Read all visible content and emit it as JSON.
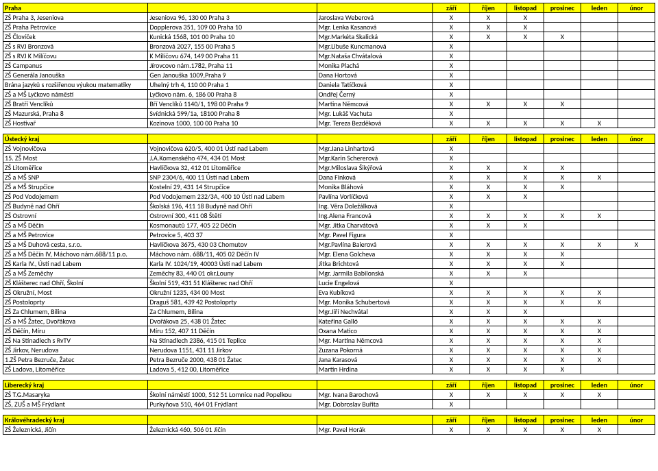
{
  "months": [
    "září",
    "říjen",
    "listopad",
    "prosinec",
    "leden",
    "únor"
  ],
  "sections": [
    {
      "title": "Praha",
      "rows": [
        [
          "ZŠ Praha 3, Jeseniova",
          "Jeseniova 96, 130 00 Praha 3",
          "Jaroslava Weberová",
          "X",
          "X",
          "X",
          "",
          "",
          ""
        ],
        [
          "ZŠ Praha Petrovice",
          "Dopplerova 351, 109 00 Praha 10",
          "Mgr. Lenka Kasanová",
          "X",
          "X",
          "X",
          "",
          "",
          ""
        ],
        [
          "ZŠ Človíček",
          "Kunická 1568, 101 00 Praha 10",
          "Mgr.Markéta Skalická",
          "X",
          "X",
          "X",
          "X",
          "",
          ""
        ],
        [
          "ZŠ s RVJ Bronzová",
          "Bronzová 2027, 155 00 Praha 5",
          "Mgr.Libuše Kuncmanová",
          "X",
          "",
          "",
          "",
          "",
          ""
        ],
        [
          "ZŠ s RVJ K Milíčovu",
          "K Milíčovu 674, 149 00 Praha 11",
          "Mgr.Nataša Chvátalová",
          "X",
          "",
          "",
          "",
          "",
          ""
        ],
        [
          "ZŠ Campanus",
          "Jírovcovo nám.1782, Praha 11",
          "Monika Plachá",
          "X",
          "",
          "",
          "",
          "",
          ""
        ],
        [
          "ZŠ Generála Janouška",
          "Gen Janouška 1009,Praha 9",
          "Dana Hortová",
          "X",
          "",
          "",
          "",
          "",
          ""
        ],
        [
          "Brána jazyků s rozšířenou výukou matematiky",
          "Uhelný trh 4, 110 00 Praha 1",
          "Daniela Tatíčková",
          "X",
          "",
          "",
          "",
          "",
          ""
        ],
        [
          "ZŠ a MŠ Lyčkovo náměstí",
          "Lyčkovo nám. 6, 186 00 Praha 8",
          "Ondřej Černý",
          "X",
          "",
          "",
          "",
          "",
          ""
        ],
        [
          "ZŠ Bratří Venclíků",
          "Bří Venclíků 1140/1, 198 00 Praha 9",
          "Martina Němcová",
          "X",
          "X",
          "X",
          "X",
          "",
          ""
        ],
        [
          "ZŠ Mazurská, Praha 8",
          "Svídnická 599/1a, 18100 Praha 8",
          "Mgr. Lukáš Vachuta",
          "X",
          "",
          "",
          "",
          "",
          ""
        ],
        [
          "ZŠ Hostivař",
          "Kozinova 1000, 100 00 Praha 10",
          "Mgr. Tereza Bezděková",
          "X",
          "X",
          "X",
          "X",
          "X",
          ""
        ]
      ]
    },
    {
      "title": "Ústecký kraj",
      "rows": [
        [
          "ZŠ Vojnovičova",
          "Vojnovičova 620/5, 400 01 Ústí nad Labem",
          "Mgr.Jana Linhartová",
          "X",
          "",
          "",
          "",
          "",
          ""
        ],
        [
          "15. ZŠ Most",
          "J.A.Komenského 474, 434 01 Most",
          "Mgr.Karin Schererová",
          "X",
          "",
          "",
          "",
          "",
          ""
        ],
        [
          "ZŠ Litoměřice",
          "Havlíčkova 32, 412 01 Litoměřice",
          "Mgr.Miloslava Šikýřová",
          "X",
          "X",
          "X",
          "X",
          "",
          ""
        ],
        [
          "ZŠ a MŠ SNP",
          "SNP 2304/6, 400 11 Ústí nad Labem",
          "Dana Finková",
          "X",
          "X",
          "X",
          "X",
          "X",
          ""
        ],
        [
          "ZŠ a MŠ Strupčice",
          "Kostelní 29, 431 14 Strupčice",
          "Monika Bláhová",
          "X",
          "X",
          "X",
          "X",
          "",
          ""
        ],
        [
          "ZŠ Pod Vodojemem",
          "Pod Vodojemem 232/3A, 400 10 Ústí nad Labem",
          "Pavlína Vorlíčková",
          "X",
          "X",
          "X",
          "",
          "",
          ""
        ],
        [
          "ZŠ Budyně nad Ohří",
          "Školská 196, 411 18 Budyně nad Ohří",
          "Ing. Věra Doležálková",
          "X",
          "",
          "",
          "",
          "",
          ""
        ],
        [
          "ZŠ Ostrovní",
          "Ostrovní 300, 411 08 Štětí",
          "Ing.Alena Francová",
          "X",
          "X",
          "X",
          "X",
          "X",
          ""
        ],
        [
          "ZŠ a MŠ Děčín",
          "Kosmonautů 177, 405 22 Děčín",
          "Mgr. Jitka Charvátová",
          "X",
          "X",
          "X",
          "",
          "",
          ""
        ],
        [
          "ZŠ a MŠ Petrovice",
          "Petrovice 5, 403 37",
          "Mgr. Pavel Figura",
          "X",
          "",
          "",
          "",
          "",
          ""
        ],
        [
          "ZŠ a MŠ Duhová cesta, s.r.o.",
          "Havlíčkova 3675, 430 03 Chomutov",
          "Mgr.Pavlína Baierová",
          "X",
          "X",
          "X",
          "X",
          "X",
          "X"
        ],
        [
          "ZŠ a MŠ Děčín IV, Máchovo nám.688/11 p.o.",
          "Máchovo nám. 688/11, 405 02 Děčín IV",
          "Mgr. Elena Golcheva",
          "X",
          "X",
          "X",
          "X",
          "",
          ""
        ],
        [
          "ZŠ Karla IV., Ústí nad Labem",
          "Karla IV. 1024/19, 40003 Ústí nad Labem",
          "Jitka Brichtová",
          "X",
          "X",
          "X",
          "X",
          "",
          ""
        ],
        [
          "ZŠ a MŠ Zeměchy",
          "Zeměchy 83, 440 01 okr.Louny",
          "Mgr. Jarmila Babilonská",
          "X",
          "X",
          "X",
          "",
          "",
          ""
        ],
        [
          "ZŠ Klášterec nad Ohří, Školní",
          "Školní 519, 431 51 Klášterec nad Ohří",
          "Lucie Engelová",
          "X",
          "",
          "",
          "",
          "",
          ""
        ],
        [
          "ZŠ Okružní, Most",
          "Okružní 1235, 434 00 Most",
          "Eva Kubíková",
          "X",
          "X",
          "X",
          "X",
          "X",
          ""
        ],
        [
          "ZŠ Postoloprty",
          "Draguš 581, 439 42 Postoloprty",
          "Mgr. Monika Schubertová",
          "X",
          "X",
          "X",
          "X",
          "X",
          ""
        ],
        [
          "ZŠ Za Chlumem, Bílina",
          "Za Chlumem, Bílina",
          "Mgr.Jiří Nechvátal",
          "X",
          "X",
          "X",
          "",
          "",
          ""
        ],
        [
          "ZŠ a MŠ Žatec, Dvořákova",
          "Dvořákova 25, 438 01 Žatec",
          "Kateřina Galló",
          "X",
          "X",
          "X",
          "X",
          "X",
          ""
        ],
        [
          "ZŠ Děčín, Míru",
          "Míru 152, 407 11 Děčín",
          "Oxana Matico",
          "X",
          "X",
          "X",
          "X",
          "X",
          ""
        ],
        [
          "ZŠ Na Stínadlech s RvTV",
          "Na Stínadlech 2386, 415 01 Teplice",
          "Mgr. Martina Němcová",
          "X",
          "X",
          "X",
          "X",
          "X",
          ""
        ],
        [
          "ZŠ Jirkov, Nerudova",
          "Nerudova 1151, 431 11 Jirkov",
          "Zuzana Pokorná",
          "X",
          "X",
          "X",
          "X",
          "X",
          ""
        ],
        [
          "1.ZŠ Petra Bezruče, Žatec",
          "Petra Bezruče 2000, 438 01 Žatec",
          "Jana Karasová",
          "X",
          "X",
          "X",
          "X",
          "X",
          ""
        ],
        [
          "ZŠ Ladova, Litoměřice",
          "Ladova 5, 412 00, Litoměřice",
          "Martin Hrdina",
          "X",
          "X",
          "X",
          "X",
          "",
          ""
        ]
      ]
    },
    {
      "title": "Liberecký kraj",
      "rows": [
        [
          "ZŠ T.G.Masaryka",
          "Školní náměstí 1000, 512 51 Lomnice nad Popelkou",
          "Mgr. Ivana Barochová",
          "X",
          "X",
          "X",
          "X",
          "X",
          ""
        ],
        [
          "ZŠ, ZUŠ a MŠ Frýdlant",
          "Purkyňova 510, 464 01 Frýdlant",
          "Mgr. Dobroslav Buřita",
          "X",
          "",
          "",
          "",
          "",
          ""
        ]
      ]
    },
    {
      "title": "Královéhradecký kraj",
      "rows": [
        [
          "ZŠ Železnická, Jičín",
          "Železnická 460, 506 01 Jičín",
          "Mgr. Pavel Horák",
          "X",
          "X",
          "X",
          "X",
          "X",
          ""
        ]
      ]
    }
  ]
}
